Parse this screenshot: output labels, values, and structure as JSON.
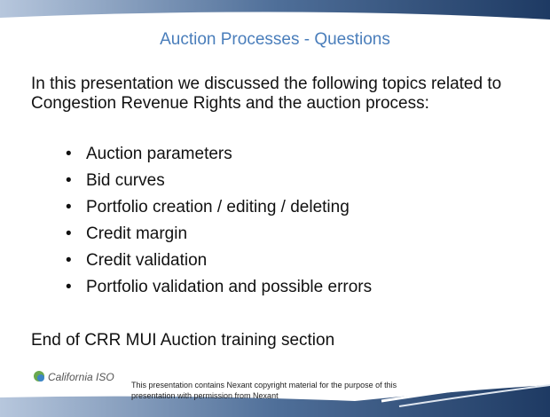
{
  "slide": {
    "title": "Auction Processes - Questions",
    "intro": "In this presentation we discussed the following topics related to Congestion Revenue Rights and the auction process:",
    "bullets": [
      "Auction parameters",
      "Bid curves",
      "Portfolio creation / editing / deleting",
      "Credit margin",
      "Credit validation",
      "Portfolio validation and possible errors"
    ],
    "closing": "End of CRR MUI Auction training section",
    "logo": "California ISO",
    "footer_note": "This presentation contains Nexant copyright material for the purpose of this presentation with permission from Nexant"
  }
}
